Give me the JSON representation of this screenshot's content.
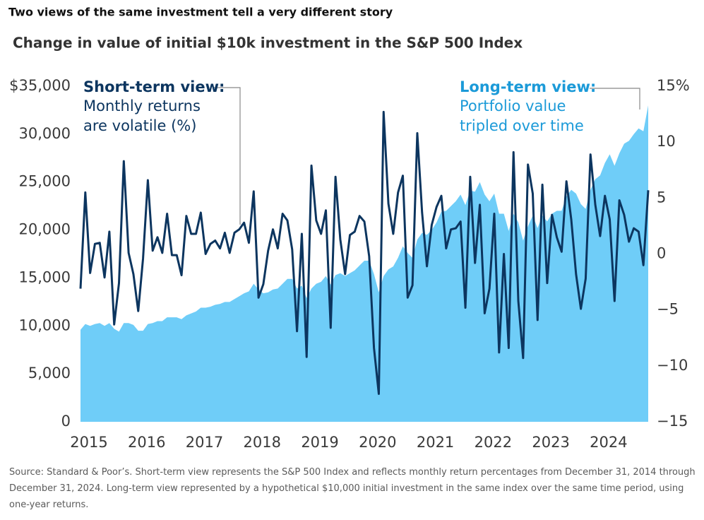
{
  "header": "Two views of the same investment tell a very different story",
  "chart_data": {
    "type": "area-line",
    "title": "Change in value of initial $10k investment in the S&P 500 Index",
    "xticks": [
      "2015",
      "2016",
      "2017",
      "2018",
      "2019",
      "2020",
      "2021",
      "2022",
      "2023",
      "2024"
    ],
    "ylim": [
      0,
      35000
    ],
    "yticks": [
      {
        "value": 0,
        "label": "0"
      },
      {
        "value": 5000,
        "label": "5,000"
      },
      {
        "value": 10000,
        "label": "10,000"
      },
      {
        "value": 15000,
        "label": "15,000"
      },
      {
        "value": 20000,
        "label": "20,000"
      },
      {
        "value": 25000,
        "label": "25,000"
      },
      {
        "value": 30000,
        "label": "30,000"
      },
      {
        "value": 35000,
        "label": "$35,000"
      }
    ],
    "y2lim": [
      -15,
      15
    ],
    "y2ticks": [
      {
        "value": -15,
        "label": "−15"
      },
      {
        "value": -10,
        "label": "−10"
      },
      {
        "value": -5,
        "label": "−5"
      },
      0,
      5,
      10,
      {
        "value": 15,
        "label": "15%"
      }
    ],
    "series": [
      {
        "name": "Long-term view:",
        "description": "Portfolio value tripled over time",
        "color": "#6fcdf8",
        "type": "area",
        "values": [
          9600,
          10200,
          10000,
          10200,
          10300,
          10000,
          10300,
          9700,
          9400,
          10300,
          10300,
          10100,
          9500,
          9500,
          10200,
          10300,
          10500,
          10500,
          10900,
          10900,
          10900,
          10700,
          11100,
          11300,
          11500,
          11900,
          11900,
          12000,
          12200,
          12300,
          12500,
          12500,
          12800,
          13100,
          13400,
          13600,
          14400,
          13800,
          13400,
          13500,
          13800,
          13900,
          14400,
          14900,
          14900,
          13900,
          14200,
          12900,
          13900,
          14400,
          14600,
          15200,
          14300,
          15300,
          15500,
          15200,
          15500,
          15800,
          16300,
          16800,
          16800,
          15400,
          13500,
          15200,
          15900,
          16200,
          17100,
          18300,
          17600,
          17100,
          19000,
          19700,
          19500,
          20000,
          20800,
          21900,
          22000,
          22500,
          23000,
          23700,
          22600,
          24100,
          24000,
          25000,
          23700,
          23000,
          23800,
          21700,
          21700,
          19900,
          21700,
          20800,
          18900,
          20400,
          21500,
          20200,
          21500,
          20900,
          21700,
          22000,
          22000,
          23500,
          24200,
          23800,
          22700,
          22200,
          24200,
          25300,
          25700,
          27000,
          27900,
          26700,
          28000,
          29000,
          29300,
          30000,
          30600,
          30300,
          33000
        ]
      },
      {
        "name": "Short-term view:",
        "description": "Monthly returns are volatile (%)",
        "color": "#0c355f",
        "type": "line",
        "axis": "y2",
        "values": [
          -3.1,
          5.5,
          -1.7,
          0.9,
          1.0,
          -2.1,
          2.0,
          -6.3,
          -2.6,
          8.3,
          0.1,
          -1.8,
          -5.1,
          -0.4,
          6.6,
          0.3,
          1.5,
          0.1,
          3.6,
          -0.1,
          -0.1,
          -1.9,
          3.4,
          1.8,
          1.8,
          3.7,
          0.0,
          0.9,
          1.2,
          0.5,
          1.9,
          0.1,
          1.9,
          2.2,
          2.8,
          1.0,
          5.6,
          -3.9,
          -2.7,
          0.3,
          2.2,
          0.5,
          3.6,
          3.0,
          0.4,
          -6.9,
          1.8,
          -9.2,
          7.9,
          3.0,
          1.8,
          3.9,
          -6.6,
          6.9,
          1.3,
          -1.8,
          1.7,
          2.0,
          3.4,
          2.9,
          -0.2,
          -8.4,
          -12.5,
          12.7,
          4.5,
          1.8,
          5.5,
          7.0,
          -3.9,
          -2.8,
          10.8,
          3.7,
          -1.1,
          2.6,
          4.2,
          5.2,
          0.5,
          2.2,
          2.3,
          2.9,
          -4.8,
          6.9,
          -0.8,
          4.4,
          -5.3,
          -3.1,
          3.6,
          -8.8,
          0.0,
          -8.4,
          9.1,
          -4.2,
          -9.3,
          8.0,
          5.4,
          -5.9,
          6.2,
          -2.6,
          3.5,
          1.5,
          0.2,
          6.5,
          3.1,
          -1.8,
          -4.9,
          -2.2,
          8.9,
          4.4,
          1.6,
          5.2,
          3.1,
          -4.2,
          4.8,
          3.5,
          1.1,
          2.3,
          2.0,
          -1.0,
          5.7
        ]
      }
    ]
  },
  "source": "Source: Standard & Poor’s. Short-term view represents the S&P 500 Index and reflects monthly return percentages from December 31, 2014 through December 31, 2024. Long-term view represented by a hypothetical $10,000 initial investment in the same index over the same time period, using one-year returns."
}
